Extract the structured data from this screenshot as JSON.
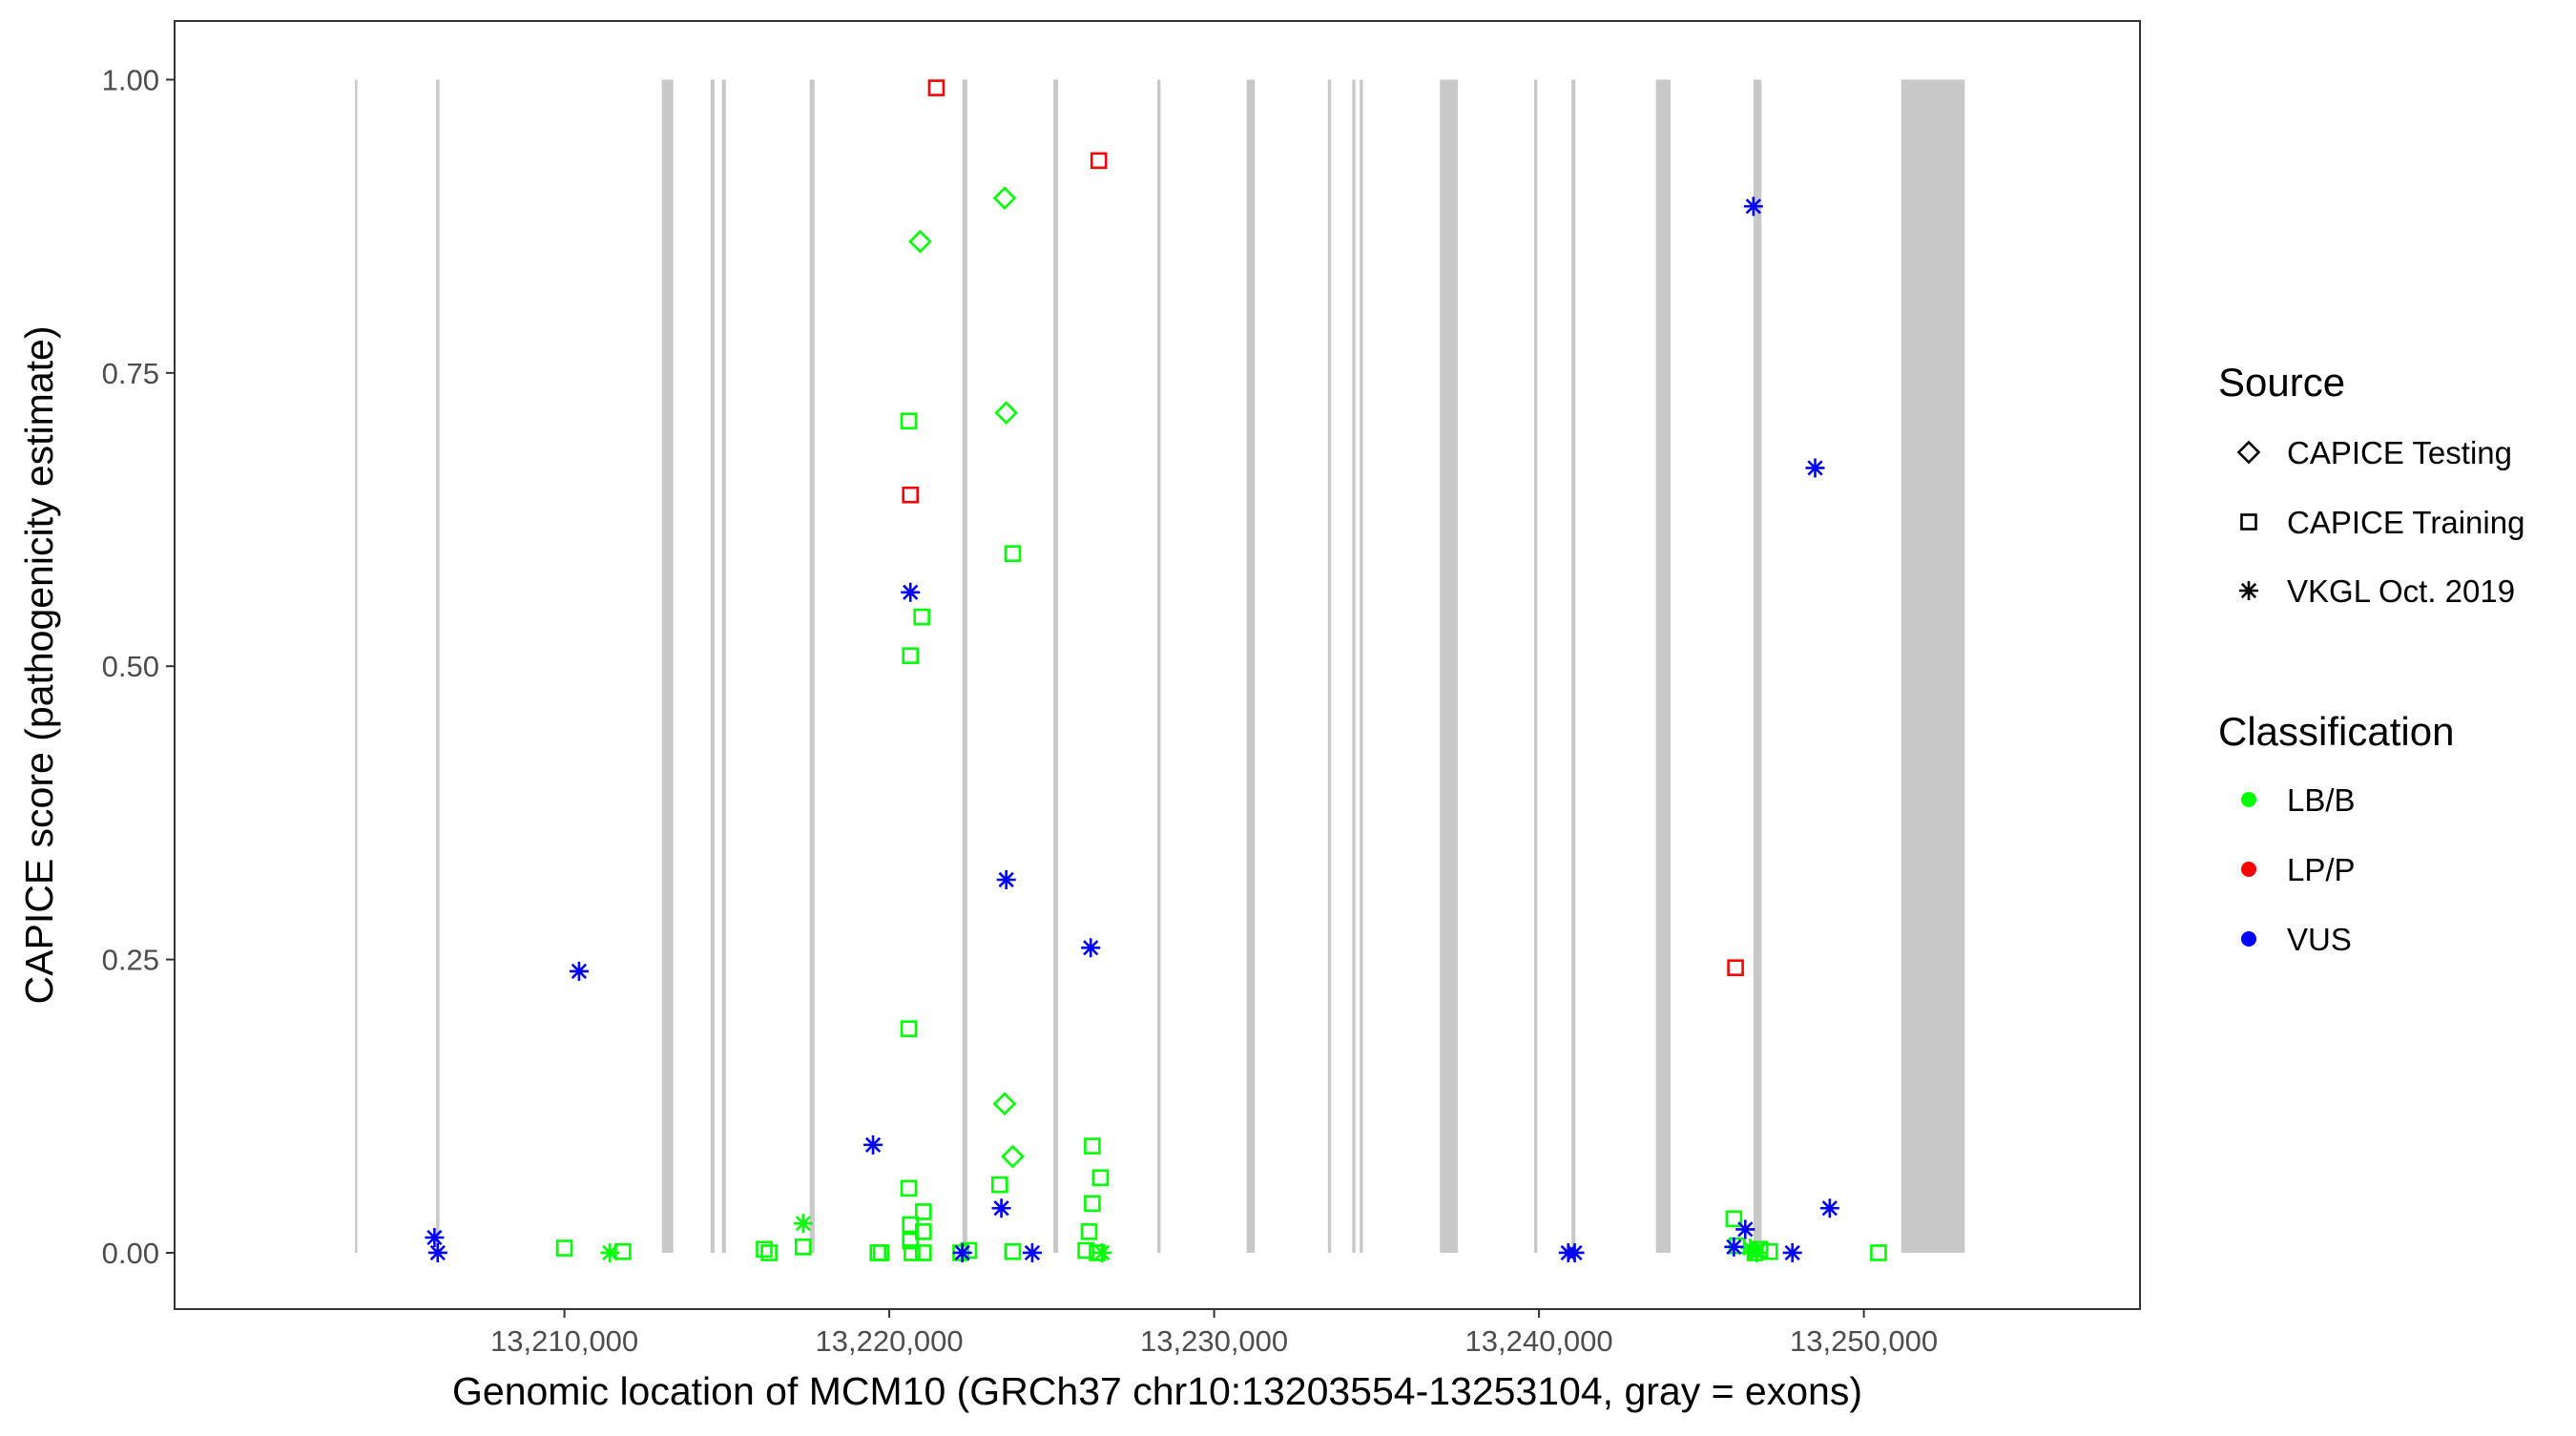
{
  "chart_data": {
    "type": "scatter",
    "xlabel": "Genomic location of MCM10 (GRCh37 chr10:13203554-13253104, gray = exons)",
    "ylabel": "CAPICE score (pathogenicity estimate)",
    "xlim": [
      13198000,
      13258500
    ],
    "ylim": [
      -0.048,
      1.05
    ],
    "x_ticks": [
      13210000,
      13220000,
      13230000,
      13240000,
      13250000
    ],
    "x_tick_labels": [
      "13,210,000",
      "13,220,000",
      "13,230,000",
      "13,240,000",
      "13,250,000"
    ],
    "y_ticks": [
      0,
      0.25,
      0.5,
      0.75,
      1
    ],
    "y_tick_labels": [
      "0.00",
      "0.25",
      "0.50",
      "0.75",
      "1.00"
    ],
    "grid": false,
    "exon_color": "#c8c8c8",
    "exons": [
      [
        13203554,
        13203600
      ],
      [
        13206050,
        13206150
      ],
      [
        13213000,
        13213350
      ],
      [
        13214500,
        13214620
      ],
      [
        13214850,
        13214970
      ],
      [
        13217550,
        13217700
      ],
      [
        13222250,
        13222400
      ],
      [
        13225050,
        13225200
      ],
      [
        13228250,
        13228350
      ],
      [
        13231000,
        13231250
      ],
      [
        13233500,
        13233600
      ],
      [
        13234250,
        13234350
      ],
      [
        13234480,
        13234580
      ],
      [
        13236950,
        13237500
      ],
      [
        13239850,
        13239950
      ],
      [
        13241000,
        13241120
      ],
      [
        13243600,
        13244050
      ],
      [
        13246600,
        13246850
      ],
      [
        13251150,
        13253104
      ]
    ],
    "legend": {
      "placement": "right",
      "source_title": "Source",
      "source_items": [
        {
          "label": "CAPICE Testing",
          "shape": "diamond"
        },
        {
          "label": "CAPICE Training",
          "shape": "square"
        },
        {
          "label": "VKGL Oct. 2019",
          "shape": "asterisk"
        }
      ],
      "class_title": "Classification",
      "class_items": [
        {
          "label": "LB/B",
          "color": "#00ff00"
        },
        {
          "label": "LP/P",
          "color": "#ff0000"
        },
        {
          "label": "VUS",
          "color": "#0000ff"
        }
      ]
    },
    "series": [
      {
        "source": "CAPICE Testing",
        "class": "LB/B",
        "shape": "diamond",
        "color": "#00ff00",
        "points": [
          [
            13220950,
            0.862
          ],
          [
            13223550,
            0.899
          ],
          [
            13223600,
            0.716
          ],
          [
            13223550,
            0.127
          ],
          [
            13223800,
            0.082
          ]
        ]
      },
      {
        "source": "CAPICE Training",
        "class": "LB/B",
        "shape": "square",
        "color": "#00ff00",
        "points": [
          [
            13220600,
            0.709
          ],
          [
            13223800,
            0.596
          ],
          [
            13221000,
            0.542
          ],
          [
            13220650,
            0.509
          ],
          [
            13220600,
            0.191
          ],
          [
            13226250,
            0.091
          ],
          [
            13226500,
            0.064
          ],
          [
            13220600,
            0.055
          ],
          [
            13223400,
            0.058
          ],
          [
            13226250,
            0.042
          ],
          [
            13221050,
            0.035
          ],
          [
            13220650,
            0.024
          ],
          [
            13221050,
            0.018
          ],
          [
            13226150,
            0.018
          ],
          [
            13220650,
            0.01
          ],
          [
            13210000,
            0.004
          ],
          [
            13211800,
            0.001
          ],
          [
            13216150,
            0.003
          ],
          [
            13216300,
            0.0
          ],
          [
            13217350,
            0.005
          ],
          [
            13219650,
            0.0
          ],
          [
            13219750,
            0.0
          ],
          [
            13220700,
            0.0
          ],
          [
            13221050,
            0.0
          ],
          [
            13222200,
            0.0
          ],
          [
            13222450,
            0.002
          ],
          [
            13223800,
            0.001
          ],
          [
            13226050,
            0.002
          ],
          [
            13226400,
            0.0
          ],
          [
            13246000,
            0.029
          ],
          [
            13246100,
            0.006
          ],
          [
            13246800,
            0.003
          ],
          [
            13247100,
            0.001
          ],
          [
            13246650,
            0.0
          ],
          [
            13250450,
            0.0
          ]
        ]
      },
      {
        "source": "CAPICE Training",
        "class": "LP/P",
        "shape": "square",
        "color": "#ff0000",
        "points": [
          [
            13221450,
            0.993
          ],
          [
            13226450,
            0.931
          ],
          [
            13220650,
            0.646
          ],
          [
            13246050,
            0.243
          ]
        ]
      },
      {
        "source": "VKGL Oct. 2019",
        "class": "LB/B",
        "shape": "asterisk",
        "color": "#00ff00",
        "points": [
          [
            13217350,
            0.025
          ],
          [
            13211400,
            0.0
          ],
          [
            13226550,
            0.0
          ],
          [
            13246500,
            0.004
          ],
          [
            13246700,
            0.0
          ]
        ]
      },
      {
        "source": "VKGL Oct. 2019",
        "class": "VUS",
        "shape": "asterisk",
        "color": "#0000ff",
        "points": [
          [
            13246600,
            0.892
          ],
          [
            13248500,
            0.669
          ],
          [
            13220650,
            0.563
          ],
          [
            13223600,
            0.318
          ],
          [
            13226200,
            0.26
          ],
          [
            13210450,
            0.24
          ],
          [
            13219500,
            0.092
          ],
          [
            13223450,
            0.038
          ],
          [
            13248950,
            0.038
          ],
          [
            13246350,
            0.02
          ],
          [
            13206000,
            0.013
          ],
          [
            13206100,
            0.0
          ],
          [
            13246000,
            0.005
          ],
          [
            13222250,
            0.0
          ],
          [
            13224400,
            0.0
          ],
          [
            13240900,
            0.0
          ],
          [
            13241100,
            0.0
          ],
          [
            13247800,
            0.0
          ]
        ]
      }
    ]
  }
}
